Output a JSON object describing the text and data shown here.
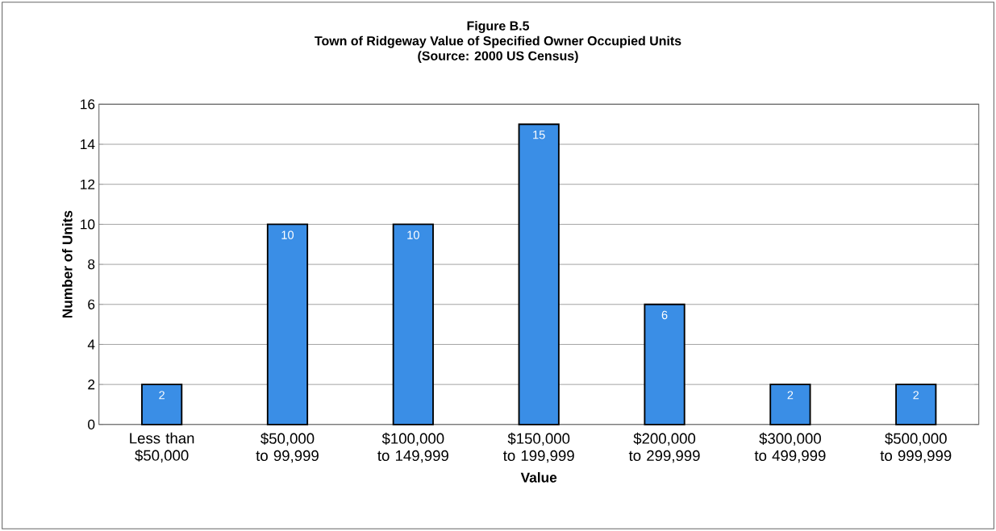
{
  "chart_data": {
    "type": "bar",
    "title": "Figure B.5",
    "subtitle": "Town of Ridgeway Value of Specified Owner Occupied Units",
    "annotations": [
      "(Source: 2000 US Census)"
    ],
    "categories": [
      "Less than $50,000",
      "$50,000 to 99,999",
      "$100,000 to 149,999",
      "$150,000 to 199,999",
      "$200,000 to 299,999",
      "$300,000 to 499,999",
      "$500,000 to 999,999"
    ],
    "values": [
      2,
      10,
      10,
      15,
      6,
      2,
      2
    ],
    "color": "#3a8ee6",
    "data_labels": true,
    "xlabel": "Value",
    "ylabel": "Number of Units",
    "ylim": [
      0,
      16
    ],
    "yticks": [
      0,
      2,
      4,
      6,
      8,
      10,
      12,
      14,
      16
    ],
    "grid": "y"
  }
}
